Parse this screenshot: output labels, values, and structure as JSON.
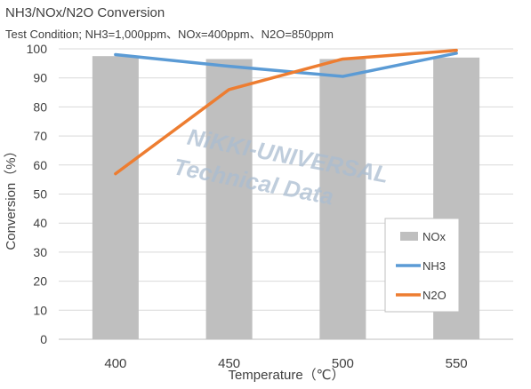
{
  "chart_data": {
    "type": "bar",
    "title": "NH3/NOx/N2O Conversion",
    "subtitle": "Test Condition; NH3=1,000ppm、NOx=400ppm、N2O=850ppm",
    "xlabel": "Temperature（℃）",
    "ylabel": "Conversion（%）",
    "categories": [
      "400",
      "450",
      "500",
      "550"
    ],
    "ylim": [
      0,
      100
    ],
    "yticks": [
      "0",
      "10",
      "20",
      "30",
      "40",
      "50",
      "60",
      "70",
      "80",
      "90",
      "100"
    ],
    "grid": true,
    "legend_position": "bottom-right",
    "series": [
      {
        "name": "NOx",
        "kind": "bar",
        "color": "#bfbfbf",
        "values": [
          97.5,
          96.5,
          96.5,
          97
        ]
      },
      {
        "name": "NH3",
        "kind": "line",
        "color": "#5b9bd5",
        "values": [
          98,
          94,
          90.5,
          98.5
        ]
      },
      {
        "name": "N2O",
        "kind": "line",
        "color": "#ed7d31",
        "values": [
          57,
          86,
          96.5,
          99.5
        ]
      }
    ]
  },
  "watermark": {
    "line1": "NiKKI-UNIVERSAL",
    "line2": "Technical Data"
  }
}
